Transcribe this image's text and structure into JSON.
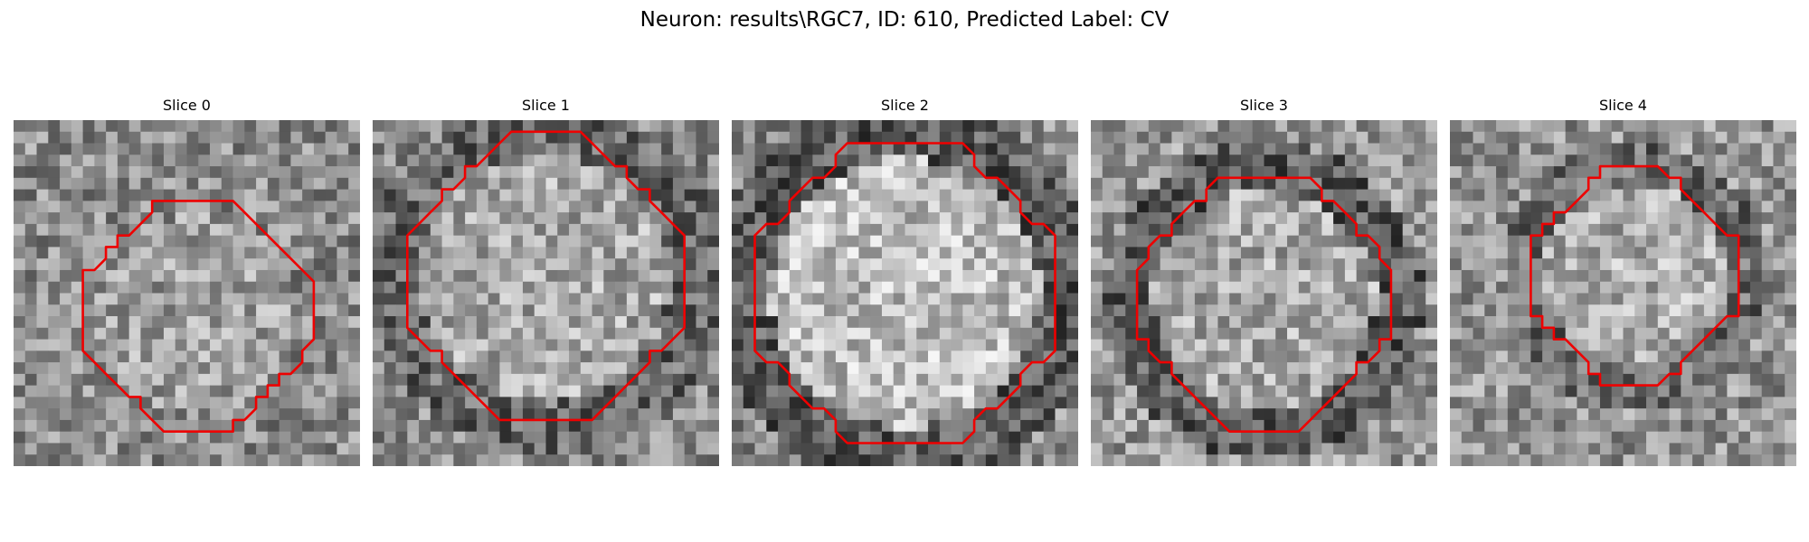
{
  "figure": {
    "suptitle": "Neuron: results\\RGC7, ID: 610, Predicted Label: CV"
  },
  "slices": [
    {
      "title": "Slice 0",
      "seed": 11,
      "contour_color": "#ee0000"
    },
    {
      "title": "Slice 1",
      "seed": 23,
      "contour_color": "#ee0000"
    },
    {
      "title": "Slice 2",
      "seed": 37,
      "contour_color": "#ee0000"
    },
    {
      "title": "Slice 3",
      "seed": 53,
      "contour_color": "#ee0000"
    },
    {
      "title": "Slice 4",
      "seed": 71,
      "contour_color": "#ee0000"
    }
  ],
  "grid_size": 30
}
